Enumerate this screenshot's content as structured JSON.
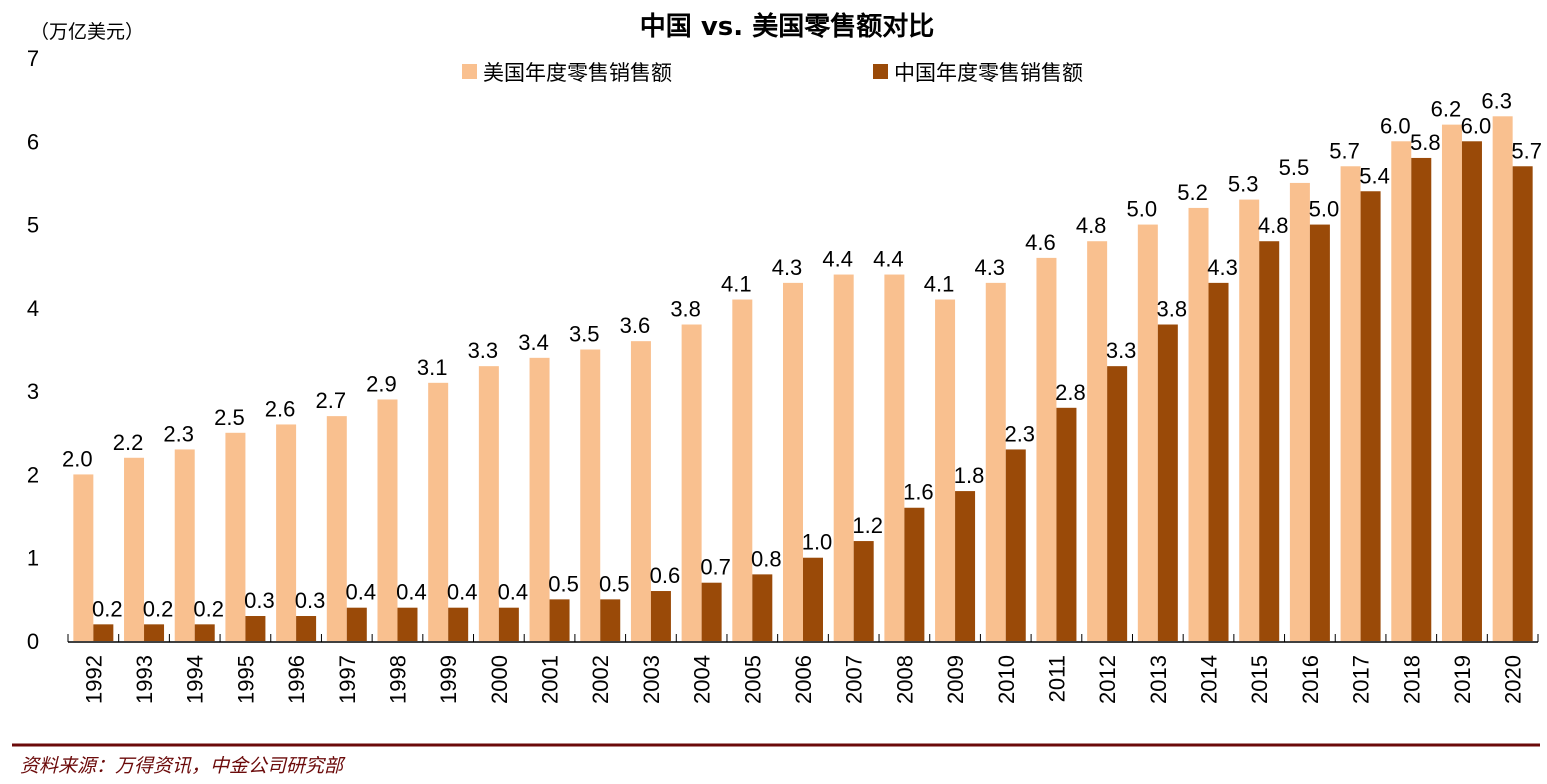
{
  "chart_data": {
    "type": "bar",
    "title": "中国 vs. 美国零售额对比",
    "unit_label": "（万亿美元）",
    "xlabel": "",
    "ylabel": "万亿美元",
    "ylim": [
      0,
      7
    ],
    "yticks": [
      "0",
      "1",
      "2",
      "3",
      "4",
      "5",
      "6",
      "7"
    ],
    "grid": false,
    "legend_position": "top-center",
    "categories": [
      "1992",
      "1993",
      "1994",
      "1995",
      "1996",
      "1997",
      "1998",
      "1999",
      "2000",
      "2001",
      "2002",
      "2003",
      "2004",
      "2005",
      "2006",
      "2007",
      "2008",
      "2009",
      "2010",
      "2011",
      "2012",
      "2013",
      "2014",
      "2015",
      "2016",
      "2017",
      "2018",
      "2019",
      "2020"
    ],
    "series": [
      {
        "name": "美国年度零售销售额",
        "color": "#F9C08F",
        "values": [
          2.0,
          2.2,
          2.3,
          2.5,
          2.6,
          2.7,
          2.9,
          3.1,
          3.3,
          3.4,
          3.5,
          3.6,
          3.8,
          4.1,
          4.3,
          4.4,
          4.4,
          4.1,
          4.3,
          4.6,
          4.8,
          5.0,
          5.2,
          5.3,
          5.5,
          5.7,
          6.0,
          6.2,
          6.3
        ]
      },
      {
        "name": "中国年度零售销售额",
        "color": "#9A4A08",
        "values": [
          0.2,
          0.2,
          0.2,
          0.3,
          0.3,
          0.4,
          0.4,
          0.4,
          0.4,
          0.5,
          0.5,
          0.6,
          0.7,
          0.8,
          1.0,
          1.2,
          1.6,
          1.8,
          2.3,
          2.8,
          3.3,
          3.8,
          4.3,
          4.8,
          5.0,
          5.4,
          5.8,
          6.0,
          5.7
        ]
      }
    ],
    "source": "资料来源：万得资讯，中金公司研究部",
    "source_rule_color": "#6B0A0A"
  }
}
